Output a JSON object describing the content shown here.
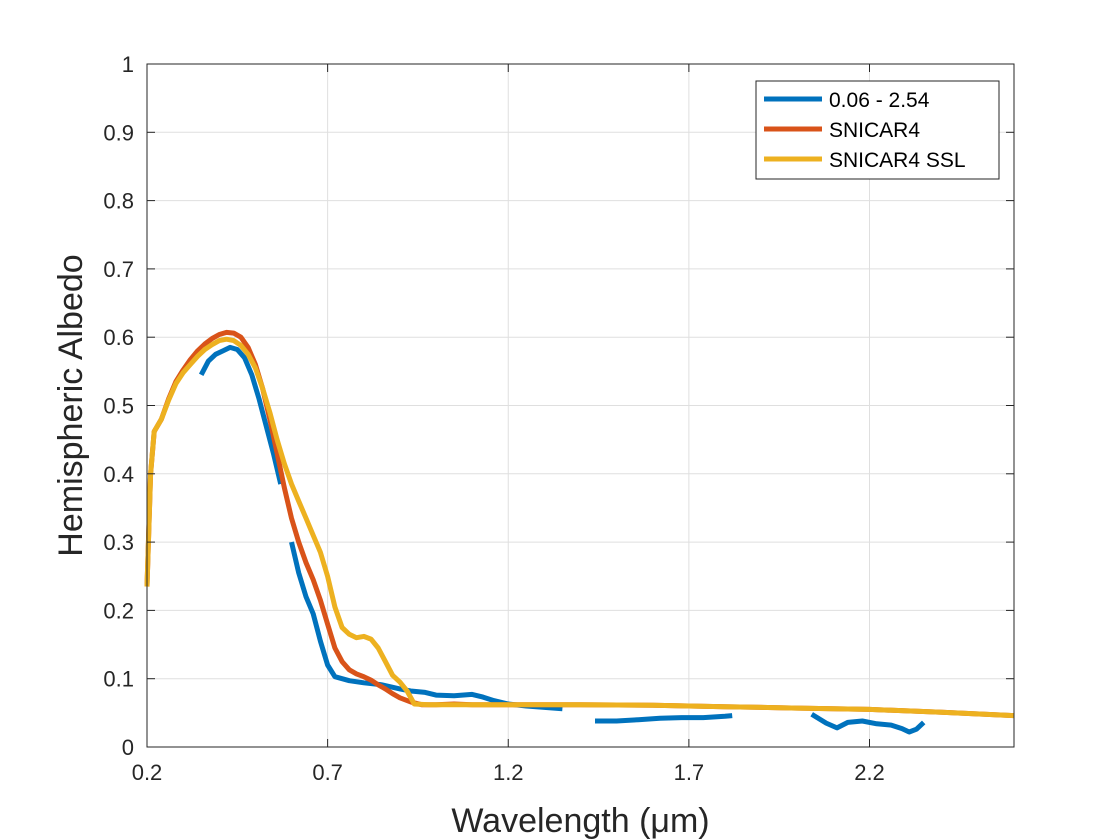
{
  "chart_data": {
    "type": "line",
    "title": "",
    "xlabel": "Wavelength (μm)",
    "ylabel": "Hemispheric Albedo",
    "xlim": [
      0.2,
      2.6
    ],
    "ylim": [
      0,
      1
    ],
    "xticks": [
      "0.2",
      "0.7",
      "1.2",
      "1.7",
      "2.2"
    ],
    "xtick_values": [
      0.2,
      0.7,
      1.2,
      1.7,
      2.2
    ],
    "yticks": [
      "0",
      "0.1",
      "0.2",
      "0.3",
      "0.4",
      "0.5",
      "0.6",
      "0.7",
      "0.8",
      "0.9",
      "1"
    ],
    "ytick_values": [
      0,
      0.1,
      0.2,
      0.3,
      0.4,
      0.5,
      0.6,
      0.7,
      0.8,
      0.9,
      1.0
    ],
    "grid": true,
    "legend_position": "top-right",
    "series": [
      {
        "name": "0.06 - 2.54",
        "color": "#0072BD",
        "segments": [
          [
            [
              0.35,
              0.545
            ],
            [
              0.37,
              0.565
            ],
            [
              0.39,
              0.575
            ],
            [
              0.41,
              0.58
            ],
            [
              0.43,
              0.585
            ],
            [
              0.45,
              0.582
            ],
            [
              0.47,
              0.57
            ],
            [
              0.49,
              0.545
            ],
            [
              0.51,
              0.51
            ],
            [
              0.53,
              0.47
            ],
            [
              0.55,
              0.43
            ],
            [
              0.57,
              0.385
            ]
          ],
          [
            [
              0.6,
              0.3
            ],
            [
              0.62,
              0.255
            ],
            [
              0.64,
              0.22
            ],
            [
              0.66,
              0.195
            ],
            [
              0.68,
              0.155
            ],
            [
              0.7,
              0.12
            ],
            [
              0.72,
              0.103
            ],
            [
              0.76,
              0.097
            ],
            [
              0.8,
              0.094
            ],
            [
              0.85,
              0.091
            ],
            [
              0.9,
              0.085
            ],
            [
              0.93,
              0.082
            ],
            [
              0.97,
              0.08
            ],
            [
              1.0,
              0.076
            ],
            [
              1.05,
              0.075
            ],
            [
              1.1,
              0.077
            ],
            [
              1.13,
              0.073
            ],
            [
              1.16,
              0.068
            ],
            [
              1.2,
              0.063
            ],
            [
              1.25,
              0.06
            ],
            [
              1.3,
              0.058
            ],
            [
              1.35,
              0.056
            ]
          ],
          [
            [
              1.44,
              0.038
            ],
            [
              1.5,
              0.038
            ],
            [
              1.56,
              0.04
            ],
            [
              1.62,
              0.042
            ],
            [
              1.68,
              0.043
            ],
            [
              1.74,
              0.043
            ],
            [
              1.8,
              0.045
            ],
            [
              1.82,
              0.046
            ]
          ],
          [
            [
              2.04,
              0.048
            ],
            [
              2.08,
              0.035
            ],
            [
              2.11,
              0.028
            ],
            [
              2.14,
              0.036
            ],
            [
              2.18,
              0.038
            ],
            [
              2.22,
              0.034
            ],
            [
              2.26,
              0.032
            ],
            [
              2.29,
              0.027
            ],
            [
              2.31,
              0.022
            ],
            [
              2.33,
              0.026
            ],
            [
              2.35,
              0.036
            ]
          ]
        ]
      },
      {
        "name": "SNICAR4",
        "color": "#D95319",
        "segments": [
          [
            [
              0.2,
              0.235
            ],
            [
              0.21,
              0.4
            ],
            [
              0.22,
              0.462
            ],
            [
              0.24,
              0.48
            ],
            [
              0.26,
              0.51
            ],
            [
              0.28,
              0.535
            ],
            [
              0.3,
              0.552
            ],
            [
              0.32,
              0.567
            ],
            [
              0.34,
              0.58
            ],
            [
              0.36,
              0.59
            ],
            [
              0.38,
              0.598
            ],
            [
              0.4,
              0.604
            ],
            [
              0.42,
              0.607
            ],
            [
              0.44,
              0.606
            ],
            [
              0.46,
              0.6
            ],
            [
              0.48,
              0.585
            ],
            [
              0.5,
              0.56
            ],
            [
              0.52,
              0.525
            ],
            [
              0.54,
              0.48
            ],
            [
              0.56,
              0.43
            ],
            [
              0.58,
              0.38
            ],
            [
              0.6,
              0.335
            ],
            [
              0.62,
              0.3
            ],
            [
              0.64,
              0.27
            ],
            [
              0.66,
              0.245
            ],
            [
              0.68,
              0.215
            ],
            [
              0.7,
              0.18
            ],
            [
              0.72,
              0.145
            ],
            [
              0.74,
              0.125
            ],
            [
              0.76,
              0.113
            ],
            [
              0.78,
              0.107
            ],
            [
              0.8,
              0.103
            ],
            [
              0.82,
              0.098
            ],
            [
              0.84,
              0.091
            ],
            [
              0.86,
              0.085
            ],
            [
              0.88,
              0.078
            ],
            [
              0.9,
              0.072
            ],
            [
              0.93,
              0.066
            ],
            [
              0.96,
              0.062
            ],
            [
              1.0,
              0.062
            ],
            [
              1.05,
              0.063
            ],
            [
              1.1,
              0.062
            ],
            [
              1.2,
              0.062
            ],
            [
              1.4,
              0.062
            ],
            [
              1.6,
              0.061
            ],
            [
              1.8,
              0.059
            ],
            [
              2.0,
              0.057
            ],
            [
              2.2,
              0.055
            ],
            [
              2.4,
              0.051
            ],
            [
              2.6,
              0.046
            ]
          ]
        ]
      },
      {
        "name": "SNICAR4 SSL",
        "color": "#EDB120",
        "segments": [
          [
            [
              0.2,
              0.235
            ],
            [
              0.21,
              0.4
            ],
            [
              0.22,
              0.462
            ],
            [
              0.24,
              0.48
            ],
            [
              0.26,
              0.508
            ],
            [
              0.28,
              0.532
            ],
            [
              0.3,
              0.548
            ],
            [
              0.32,
              0.56
            ],
            [
              0.34,
              0.572
            ],
            [
              0.36,
              0.582
            ],
            [
              0.38,
              0.589
            ],
            [
              0.4,
              0.595
            ],
            [
              0.42,
              0.597
            ],
            [
              0.44,
              0.595
            ],
            [
              0.46,
              0.588
            ],
            [
              0.48,
              0.575
            ],
            [
              0.5,
              0.555
            ],
            [
              0.52,
              0.525
            ],
            [
              0.54,
              0.49
            ],
            [
              0.56,
              0.45
            ],
            [
              0.58,
              0.415
            ],
            [
              0.6,
              0.385
            ],
            [
              0.62,
              0.36
            ],
            [
              0.64,
              0.335
            ],
            [
              0.66,
              0.31
            ],
            [
              0.68,
              0.285
            ],
            [
              0.7,
              0.25
            ],
            [
              0.72,
              0.205
            ],
            [
              0.74,
              0.175
            ],
            [
              0.76,
              0.165
            ],
            [
              0.78,
              0.16
            ],
            [
              0.8,
              0.162
            ],
            [
              0.82,
              0.158
            ],
            [
              0.84,
              0.145
            ],
            [
              0.86,
              0.125
            ],
            [
              0.88,
              0.105
            ],
            [
              0.9,
              0.095
            ],
            [
              0.92,
              0.082
            ],
            [
              0.94,
              0.063
            ],
            [
              0.98,
              0.062
            ],
            [
              1.05,
              0.062
            ],
            [
              1.2,
              0.062
            ],
            [
              1.4,
              0.062
            ],
            [
              1.6,
              0.061
            ],
            [
              1.8,
              0.059
            ],
            [
              2.0,
              0.057
            ],
            [
              2.2,
              0.055
            ],
            [
              2.4,
              0.051
            ],
            [
              2.6,
              0.046
            ]
          ]
        ]
      }
    ]
  }
}
